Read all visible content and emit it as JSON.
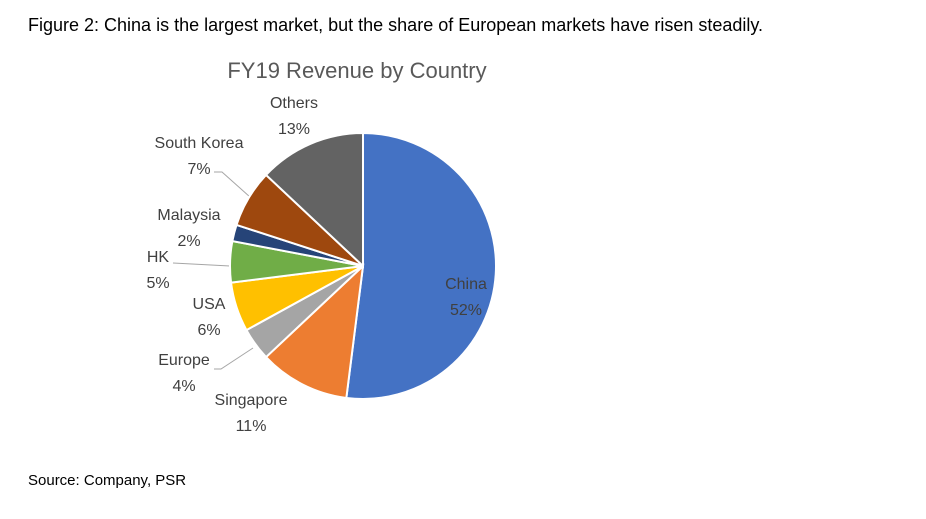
{
  "caption": "Figure 2: China is the largest market, but the share of European markets have risen steadily.",
  "source": "Source: Company, PSR",
  "chart_data": {
    "type": "pie",
    "title": "FY19 Revenue by Country",
    "categories": [
      "China",
      "Singapore",
      "Europe",
      "USA",
      "HK",
      "Malaysia",
      "South Korea",
      "Others"
    ],
    "values": [
      52,
      11,
      4,
      6,
      5,
      2,
      7,
      13
    ],
    "value_labels": [
      "52%",
      "11%",
      "4%",
      "6%",
      "5%",
      "2%",
      "7%",
      "13%"
    ],
    "colors": [
      "#4472c4",
      "#ed7d31",
      "#a5a5a5",
      "#ffc000",
      "#70ad47",
      "#264478",
      "#9e480e",
      "#636363"
    ]
  }
}
